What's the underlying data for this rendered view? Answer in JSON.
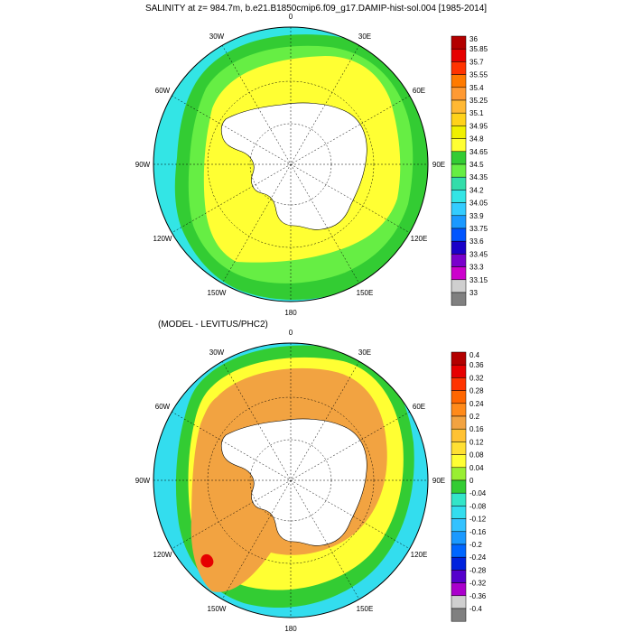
{
  "figure": {
    "title": "SALINITY at z= 984.7m, b.e21.B1850cmip6.f09_g17.DAMIP-hist-sol.004 [1985-2014]",
    "subtitle": "(MODEL - LEVITUS/PHC2)"
  },
  "maps": [
    {
      "id": "salinity",
      "longitude_labels": [
        "0",
        "30E",
        "60E",
        "90E",
        "120E",
        "150E",
        "180",
        "150W",
        "120W",
        "90W",
        "60W",
        "30W"
      ],
      "colorbar": {
        "levels": [
          "36",
          "35.85",
          "35.7",
          "35.55",
          "35.4",
          "35.25",
          "35.1",
          "34.95",
          "34.8",
          "34.65",
          "34.5",
          "34.35",
          "34.2",
          "34.05",
          "33.9",
          "33.75",
          "33.6",
          "33.45",
          "33.3",
          "33.15",
          "33"
        ],
        "colors": [
          "#b30000",
          "#e60000",
          "#ff3300",
          "#ff7a00",
          "#ff9a33",
          "#ffb833",
          "#ffd21a",
          "#f0f000",
          "#ffff33",
          "#33cc33",
          "#66ee44",
          "#33ddaa",
          "#33e5e5",
          "#33ccff",
          "#1a99ff",
          "#0055ff",
          "#1a00c8",
          "#7a00cc",
          "#cc00cc",
          "#cfcfcf",
          "#808080"
        ]
      },
      "regions": {
        "ocean_outer": "#33e5e5",
        "band_green": "#33cc33",
        "band_lightgreen": "#66ee44",
        "inner_yellow": "#ffff33",
        "continent": "#ffffff"
      }
    },
    {
      "id": "difference",
      "longitude_labels": [
        "0",
        "30E",
        "60E",
        "90E",
        "120E",
        "150E",
        "180",
        "150W",
        "120W",
        "90W",
        "60W",
        "30W"
      ],
      "colorbar": {
        "levels": [
          "0.4",
          "0.36",
          "0.32",
          "0.28",
          "0.24",
          "0.2",
          "0.16",
          "0.12",
          "0.08",
          "0.04",
          "0",
          "-0.04",
          "-0.08",
          "-0.12",
          "-0.16",
          "-0.2",
          "-0.24",
          "-0.28",
          "-0.32",
          "-0.36",
          "-0.4"
        ],
        "colors": [
          "#b30000",
          "#e60000",
          "#ff3300",
          "#ff6600",
          "#ff8a1a",
          "#f2a341",
          "#ffc233",
          "#ffe033",
          "#ffff33",
          "#99ee33",
          "#33cc33",
          "#33e5c8",
          "#33ddee",
          "#33c2ff",
          "#1a99ff",
          "#0066ff",
          "#0022dd",
          "#5500cc",
          "#aa00cc",
          "#cfcfcf",
          "#808080"
        ]
      },
      "regions": {
        "ocean_outer": "#33ddee",
        "band_green": "#33cc33",
        "band_yellow": "#ffff33",
        "band_orange": "#f2a341",
        "blue_patch": "#1a99ff",
        "red_patch": "#e60000",
        "continent": "#ffffff"
      }
    }
  ]
}
